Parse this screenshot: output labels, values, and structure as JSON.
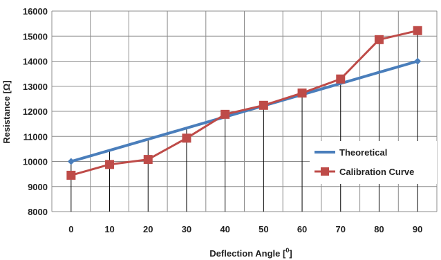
{
  "chart_data": {
    "type": "line",
    "xlabel": "Deflection Angle [",
    "xlabel_sup": "0",
    "xlabel_end": "]",
    "ylabel": "Resistance [Ω]",
    "x": [
      0,
      10,
      20,
      30,
      40,
      50,
      60,
      70,
      80,
      90
    ],
    "xticks": [
      "0",
      "10",
      "20",
      "30",
      "40",
      "50",
      "60",
      "70",
      "80",
      "90"
    ],
    "yticks": [
      "8000",
      "9000",
      "10000",
      "11000",
      "12000",
      "13000",
      "14000",
      "15000",
      "16000"
    ],
    "ylim": [
      8000,
      16000
    ],
    "grid": true,
    "legend_position": "right",
    "series": [
      {
        "name": "Theoretical",
        "color": "#4a7ebb",
        "marker": "diamond",
        "values": [
          10000,
          10444,
          10889,
          11333,
          11778,
          12222,
          12667,
          13111,
          13556,
          14000
        ]
      },
      {
        "name": "Calibration Curve",
        "color": "#be4b48",
        "marker": "square",
        "values": [
          9450,
          9880,
          10080,
          10930,
          11880,
          12240,
          12730,
          13290,
          14860,
          15220
        ]
      }
    ]
  }
}
